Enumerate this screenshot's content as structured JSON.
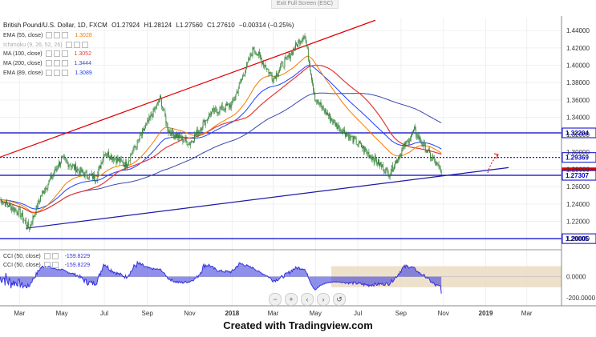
{
  "ui": {
    "exit_fullscreen": "Exit Full Screen (ESC)",
    "symbol": "British Pound/U.S. Dollar, 1D, FXCM",
    "ohlc": {
      "open": "O1.27924",
      "high": "H1.28124",
      "low": "L1.27560",
      "close": "C1.27610",
      "change": "−0.00314 (−0.25%)"
    },
    "watermark": "Created with Tradingview.com",
    "nav_minus": "−",
    "nav_plus": "+",
    "nav_reset": "↺"
  },
  "legend": [
    {
      "label": "EMA (55, close)",
      "value": "1.3028",
      "color": "#f57c00"
    },
    {
      "label": "Ichimoku (9, 26, 52, 26)",
      "value": "",
      "color": "#aaaaaa"
    },
    {
      "label": "MA (100, close)",
      "value": "1.3052",
      "color": "#e53935"
    },
    {
      "label": "MA (200, close)",
      "value": "1.3444",
      "color": "#3949ab"
    },
    {
      "label": "EMA (89, close)",
      "value": "1.3089",
      "color": "#1e40ff"
    }
  ],
  "cci_legend": [
    {
      "label": "CCI (50, close)",
      "value": "-159.8229"
    },
    {
      "label": "CCI (50, close)",
      "value": "-159.8229"
    }
  ],
  "colors": {
    "up": "#26a69a",
    "down": "#ef5350",
    "candle": "#2e7d32",
    "level_line": "#0000cc",
    "dotted_level": "#0000cc",
    "channel_red": "#e00000",
    "support_blue": "#1a1aa8",
    "price_tag_red": "#e00000",
    "cci_fill": "#3333dd",
    "band_fill": "#ead9bf"
  },
  "chart_data": {
    "type": "line",
    "title": "British Pound/U.S. Dollar, 1D, FXCM",
    "x_ticks": [
      "Mar",
      "May",
      "Jul",
      "Sep",
      "Nov",
      "2018",
      "Mar",
      "May",
      "Jul",
      "Sep",
      "Nov",
      "2019",
      "Mar"
    ],
    "y_ticks": [
      "1.44000",
      "1.42000",
      "1.40000",
      "1.38000",
      "1.36000",
      "1.34000",
      "1.32000",
      "1.30000",
      "1.28000",
      "1.26000",
      "1.24000",
      "1.22000",
      "1.20000"
    ],
    "ylim": [
      1.19,
      1.455
    ],
    "price_labels": [
      {
        "text": "1.32204",
        "value": 1.32204,
        "style": "blue"
      },
      {
        "text": "1.29369",
        "value": 1.29369,
        "style": "blue-dotted"
      },
      {
        "text": "1.27610",
        "value": 1.2761,
        "style": "red"
      },
      {
        "text": "1.27307",
        "value": 1.27307,
        "style": "blue"
      },
      {
        "text": "1.20005",
        "value": 1.20005,
        "style": "blue"
      }
    ],
    "price_path": [
      {
        "x": "2017-02",
        "y": 1.245
      },
      {
        "x": "2017-03",
        "y": 1.23
      },
      {
        "x": "2017-03-15",
        "y": 1.212
      },
      {
        "x": "2017-04",
        "y": 1.25
      },
      {
        "x": "2017-05",
        "y": 1.292
      },
      {
        "x": "2017-06",
        "y": 1.275
      },
      {
        "x": "2017-06-20",
        "y": 1.27
      },
      {
        "x": "2017-07",
        "y": 1.3
      },
      {
        "x": "2017-08",
        "y": 1.285
      },
      {
        "x": "2017-09-20",
        "y": 1.362
      },
      {
        "x": "2017-10",
        "y": 1.325
      },
      {
        "x": "2017-11",
        "y": 1.31
      },
      {
        "x": "2017-12",
        "y": 1.345
      },
      {
        "x": "2018-01",
        "y": 1.355
      },
      {
        "x": "2018-02",
        "y": 1.42
      },
      {
        "x": "2018-03",
        "y": 1.385
      },
      {
        "x": "2018-04-15",
        "y": 1.436
      },
      {
        "x": "2018-05",
        "y": 1.36
      },
      {
        "x": "2018-06",
        "y": 1.33
      },
      {
        "x": "2018-07",
        "y": 1.31
      },
      {
        "x": "2018-08-15",
        "y": 1.275
      },
      {
        "x": "2018-09",
        "y": 1.3
      },
      {
        "x": "2018-09-20",
        "y": 1.325
      },
      {
        "x": "2018-10",
        "y": 1.31
      },
      {
        "x": "2018-10-30",
        "y": 1.2761
      }
    ],
    "indicators": [
      {
        "label": "EMA (55, close)",
        "color": "#f57c00"
      },
      {
        "label": "MA (100, close)",
        "color": "#e53935"
      },
      {
        "label": "MA (200, close)",
        "color": "#3949ab"
      },
      {
        "label": "EMA (89, close)",
        "color": "#1e40ff"
      }
    ],
    "cci": {
      "label": "CCI (50, close)",
      "last": -159.8229,
      "y_ticks": [
        "0.0000",
        "-200.0000"
      ],
      "band": [
        -100,
        100
      ]
    }
  }
}
